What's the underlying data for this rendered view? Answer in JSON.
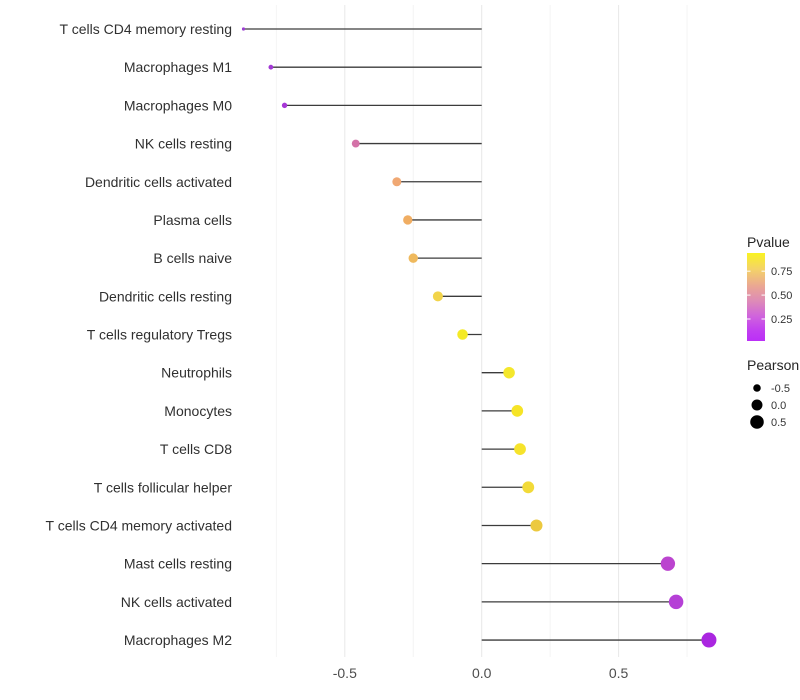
{
  "chart_data": {
    "type": "scatter",
    "subtype": "lollipop",
    "orientation": "horizontal",
    "title": "",
    "xlabel": "",
    "ylabel": "",
    "categories": [
      "T cells CD4 memory resting",
      "Macrophages M1",
      "Macrophages M0",
      "NK cells resting",
      "Dendritic cells activated",
      "Plasma cells",
      "B cells naive",
      "Dendritic cells resting",
      "T cells regulatory  Tregs",
      "Neutrophils",
      "Monocytes",
      "T cells CD8",
      "T cells follicular helper",
      "T cells CD4 memory activated",
      "Mast cells resting",
      "NK cells activated",
      "Macrophages M2"
    ],
    "series": [
      {
        "name": "Pearson",
        "values": [
          -0.87,
          -0.77,
          -0.72,
          -0.46,
          -0.31,
          -0.27,
          -0.25,
          -0.16,
          -0.07,
          0.1,
          0.13,
          0.14,
          0.17,
          0.2,
          0.68,
          0.71,
          0.83
        ]
      }
    ],
    "point_colors": [
      "#9b3ed2",
      "#a238d4",
      "#a637d6",
      "#d472a8",
      "#f0a873",
      "#f0ad62",
      "#efb95d",
      "#f2d44a",
      "#f4ea26",
      "#f4e72c",
      "#f6e426",
      "#f6e32b",
      "#f2da38",
      "#ecc93f",
      "#bb44cf",
      "#b540d6",
      "#aa26e0"
    ],
    "baseline_x": 0,
    "x_major_ticks": [
      -0.5,
      0,
      0.5
    ],
    "x_major_tick_labels": [
      "-0.5",
      "0.0",
      "0.5"
    ],
    "x_minor_ticks": [
      -0.75,
      -0.25,
      0.25,
      0.75
    ],
    "xlim": [
      -0.955,
      0.915
    ],
    "grid": "vertical major+minor only, light gray on white",
    "legend_position": "right",
    "legends": {
      "pvalue": {
        "title": "Pvalue",
        "type": "colorbar",
        "tick_labels": [
          "0.75",
          "0.50",
          "0.25"
        ],
        "tick_values": [
          0.75,
          0.5,
          0.25
        ],
        "bar_range": [
          0.02,
          0.94
        ],
        "gradient_stops": [
          {
            "offset": 0.0,
            "color": "#f9f321"
          },
          {
            "offset": 0.18,
            "color": "#f4d367"
          },
          {
            "offset": 0.38,
            "color": "#eaa694"
          },
          {
            "offset": 0.55,
            "color": "#dd8ab8"
          },
          {
            "offset": 0.72,
            "color": "#cf63dd"
          },
          {
            "offset": 0.88,
            "color": "#c13ff0"
          },
          {
            "offset": 1.0,
            "color": "#bb2ff7"
          }
        ]
      },
      "pearson": {
        "title": "Pearson",
        "type": "size",
        "dot_color": "#000000",
        "items": [
          {
            "label": "-0.5",
            "value": -0.5
          },
          {
            "label": "0.0",
            "value": 0.0
          },
          {
            "label": "0.5",
            "value": 0.5
          }
        ]
      }
    }
  },
  "colors": {
    "background": "#ffffff",
    "grid_major": "#e8e8e8",
    "grid_minor": "#f4f4f4",
    "stem": "#3c3c3c",
    "axis_text": "#4d4d4d",
    "category_text": "#303030",
    "legend_title_text": "#262626",
    "legend_label_text": "#333333"
  }
}
